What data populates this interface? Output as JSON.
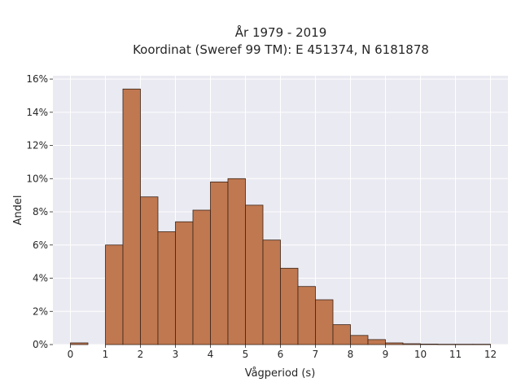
{
  "chart_data": {
    "type": "bar",
    "title_lines": [
      "År 1979 - 2019",
      "Koordinat (Sweref 99 TM): E 451374, N 6181878"
    ],
    "xlabel": "Vågperiod (s)",
    "ylabel": "Andel",
    "xlim": [
      -0.5,
      12.5
    ],
    "ylim": [
      0,
      16.2
    ],
    "grid": true,
    "bin_width": 0.5,
    "bar_color": "#c07850",
    "edge_color": "#3a2418",
    "background_color": "#eaeaf2",
    "x_ticks": [
      0,
      1,
      2,
      3,
      4,
      5,
      6,
      7,
      8,
      9,
      10,
      11,
      12
    ],
    "x_tick_labels": [
      "0",
      "1",
      "2",
      "3",
      "4",
      "5",
      "6",
      "7",
      "8",
      "9",
      "10",
      "11",
      "12"
    ],
    "y_ticks": [
      0,
      2,
      4,
      6,
      8,
      10,
      12,
      14,
      16
    ],
    "y_tick_labels": [
      "0%",
      "2%",
      "4%",
      "6%",
      "8%",
      "10%",
      "12%",
      "14%",
      "16%"
    ],
    "bin_starts": [
      0,
      1,
      1.5,
      2,
      2.5,
      3,
      3.5,
      4,
      4.5,
      5,
      5.5,
      6,
      6.5,
      7,
      7.5,
      8,
      8.5,
      9,
      9.5,
      10,
      10.5,
      11,
      11.5
    ],
    "values": [
      0.1,
      6.0,
      15.4,
      8.9,
      6.8,
      7.4,
      8.1,
      9.8,
      10.0,
      8.4,
      6.3,
      4.6,
      3.5,
      2.7,
      1.2,
      0.55,
      0.3,
      0.1,
      0.05,
      0.03,
      0.02,
      0.02,
      0.02
    ]
  }
}
